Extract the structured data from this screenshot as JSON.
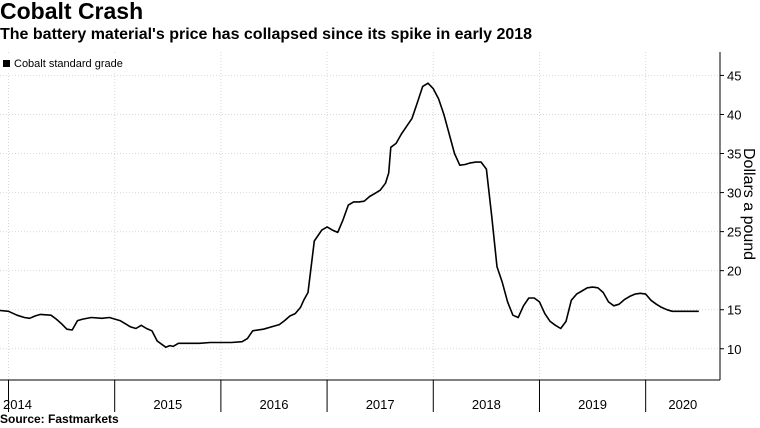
{
  "header": {
    "title": "Cobalt Crash",
    "subtitle": "The battery material's price has collapsed since its spike in early 2018"
  },
  "footer": {
    "source": "Source: Fastmarkets"
  },
  "colors": {
    "line": "#000000",
    "grid": "#d9d9d9",
    "axis": "#000000"
  },
  "chart_data": {
    "type": "line",
    "title": "Cobalt Crash",
    "subtitle": "The battery material's price has collapsed since its spike in early 2018",
    "xlabel": "",
    "ylabel": "Dollars a pound",
    "ylim": [
      6,
      48
    ],
    "xlim": [
      2013.92,
      2020.7
    ],
    "y_axis_position": "right",
    "grid": true,
    "yticks": [
      10,
      15,
      20,
      25,
      30,
      35,
      40,
      45
    ],
    "xticks": [
      "2014",
      "2015",
      "2016",
      "2017",
      "2018",
      "2019",
      "2020"
    ],
    "legend": {
      "placement": "top-left",
      "entries": [
        "Cobalt standard grade"
      ]
    },
    "series": [
      {
        "name": "Cobalt standard grade",
        "x": [
          2013.92,
          2014.0,
          2014.08,
          2014.15,
          2014.2,
          2014.25,
          2014.3,
          2014.4,
          2014.45,
          2014.5,
          2014.55,
          2014.6,
          2014.65,
          2014.7,
          2014.78,
          2014.88,
          2014.95,
          2015.05,
          2015.15,
          2015.2,
          2015.25,
          2015.3,
          2015.35,
          2015.4,
          2015.48,
          2015.52,
          2015.55,
          2015.6,
          2015.7,
          2015.8,
          2015.9,
          2016.0,
          2016.1,
          2016.2,
          2016.25,
          2016.3,
          2016.4,
          2016.5,
          2016.55,
          2016.6,
          2016.65,
          2016.7,
          2016.75,
          2016.78,
          2016.82,
          2016.88,
          2016.95,
          2017.0,
          2017.05,
          2017.1,
          2017.15,
          2017.2,
          2017.25,
          2017.3,
          2017.35,
          2017.4,
          2017.45,
          2017.5,
          2017.55,
          2017.58,
          2017.6,
          2017.65,
          2017.7,
          2017.75,
          2017.8,
          2017.85,
          2017.9,
          2017.95,
          2018.0,
          2018.05,
          2018.1,
          2018.15,
          2018.2,
          2018.25,
          2018.3,
          2018.35,
          2018.4,
          2018.45,
          2018.5,
          2018.55,
          2018.6,
          2018.65,
          2018.7,
          2018.75,
          2018.8,
          2018.85,
          2018.9,
          2018.95,
          2019.0,
          2019.05,
          2019.1,
          2019.15,
          2019.2,
          2019.25,
          2019.3,
          2019.35,
          2019.4,
          2019.45,
          2019.5,
          2019.55,
          2019.6,
          2019.65,
          2019.7,
          2019.75,
          2019.8,
          2019.85,
          2019.9,
          2019.95,
          2020.0,
          2020.05,
          2020.1,
          2020.15,
          2020.2,
          2020.25,
          2020.3,
          2020.35,
          2020.4,
          2020.45,
          2020.5
        ],
        "values": [
          14.9,
          14.8,
          14.3,
          14.0,
          13.9,
          14.2,
          14.4,
          14.3,
          13.8,
          13.2,
          12.5,
          12.4,
          13.6,
          13.8,
          14.0,
          13.9,
          14.0,
          13.6,
          12.8,
          12.6,
          13.0,
          12.6,
          12.3,
          11.0,
          10.2,
          10.4,
          10.3,
          10.7,
          10.7,
          10.7,
          10.8,
          10.8,
          10.8,
          10.9,
          11.3,
          12.3,
          12.5,
          12.9,
          13.1,
          13.6,
          14.2,
          14.5,
          15.3,
          16.2,
          17.2,
          23.8,
          25.2,
          25.6,
          25.2,
          24.9,
          26.5,
          28.4,
          28.8,
          28.8,
          28.9,
          29.5,
          29.9,
          30.3,
          31.2,
          32.5,
          35.8,
          36.3,
          37.5,
          38.5,
          39.5,
          41.5,
          43.6,
          44.0,
          43.3,
          42.0,
          40.0,
          37.5,
          35.0,
          33.5,
          33.6,
          33.8,
          33.9,
          33.9,
          33.0,
          27.0,
          20.5,
          18.5,
          16.0,
          14.3,
          14.0,
          15.5,
          16.5,
          16.5,
          16.0,
          14.5,
          13.5,
          13.0,
          12.6,
          13.5,
          16.2,
          17.0,
          17.4,
          17.8,
          17.9,
          17.8,
          17.2,
          16.0,
          15.5,
          15.7,
          16.3,
          16.7,
          17.0,
          17.1,
          17.0,
          16.2,
          15.7,
          15.3,
          15.0,
          14.8,
          14.8,
          14.8,
          14.8,
          14.8,
          14.8
        ]
      }
    ]
  }
}
